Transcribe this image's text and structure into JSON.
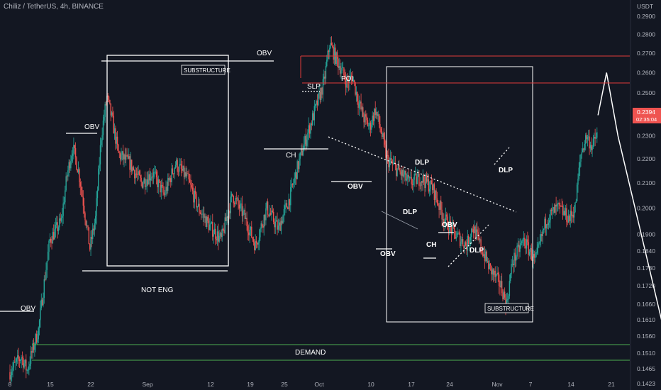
{
  "header": {
    "title": "Chiliz / TetherUS, 4h, BINANCE"
  },
  "colors": {
    "background": "#131722",
    "up": "#26a69a",
    "down": "#ef5350",
    "annotation": "#ffffff",
    "poi": "#e03b3b",
    "demand": "#4caf50"
  },
  "chart_data": {
    "type": "candlestick",
    "title": "Chiliz / TetherUS, 4h, BINANCE",
    "price_axis_label": "USDT",
    "y_ticks": [
      "0.2900",
      "0.2800",
      "0.2700",
      "0.2600",
      "0.2500",
      "0.2400",
      "0.2300",
      "0.2200",
      "0.2100",
      "0.2000",
      "0.1900",
      "0.1840",
      "0.1780",
      "0.1720",
      "0.1660",
      "0.1610",
      "0.1560",
      "0.1510",
      "0.1465",
      "0.1423"
    ],
    "x_ticks": [
      "8",
      "15",
      "22",
      "Sep",
      "12",
      "19",
      "25",
      "Oct",
      "10",
      "17",
      "24",
      "Nov",
      "7",
      "14",
      "21"
    ],
    "last_price": "0.2394",
    "countdown": "02:35:04",
    "scale": "log",
    "trend_path": [
      [
        8,
        0.1455
      ],
      [
        10,
        0.15
      ],
      [
        11,
        0.146
      ],
      [
        13,
        0.158
      ],
      [
        15,
        0.188
      ],
      [
        17,
        0.195
      ],
      [
        18,
        0.213
      ],
      [
        19,
        0.225
      ],
      [
        20,
        0.215
      ],
      [
        21,
        0.2
      ],
      [
        22,
        0.185
      ],
      [
        23,
        0.196
      ],
      [
        24,
        0.23
      ],
      [
        25,
        0.248
      ],
      [
        26,
        0.236
      ],
      [
        27,
        0.222
      ],
      [
        29,
        0.218
      ],
      [
        31,
        0.21
      ],
      [
        33,
        0.214
      ],
      [
        35,
        0.205
      ],
      [
        37,
        0.218
      ],
      [
        39,
        0.212
      ],
      [
        41,
        0.2
      ],
      [
        43,
        0.193
      ],
      [
        45,
        0.188
      ],
      [
        47,
        0.205
      ],
      [
        49,
        0.197
      ],
      [
        51,
        0.186
      ],
      [
        53,
        0.2
      ],
      [
        55,
        0.192
      ],
      [
        57,
        0.204
      ],
      [
        59,
        0.222
      ],
      [
        61,
        0.238
      ],
      [
        63,
        0.255
      ],
      [
        64,
        0.275
      ],
      [
        65,
        0.268
      ],
      [
        66,
        0.262
      ],
      [
        67,
        0.255
      ],
      [
        68,
        0.258
      ],
      [
        69,
        0.246
      ],
      [
        70,
        0.238
      ],
      [
        71,
        0.234
      ],
      [
        72,
        0.242
      ],
      [
        73,
        0.232
      ],
      [
        74,
        0.22
      ],
      [
        76,
        0.215
      ],
      [
        78,
        0.21
      ],
      [
        80,
        0.212
      ],
      [
        82,
        0.208
      ],
      [
        84,
        0.196
      ],
      [
        86,
        0.19
      ],
      [
        88,
        0.186
      ],
      [
        89,
        0.193
      ],
      [
        90,
        0.188
      ],
      [
        92,
        0.178
      ],
      [
        94,
        0.172
      ],
      [
        95,
        0.166
      ],
      [
        96,
        0.18
      ],
      [
        98,
        0.188
      ],
      [
        99,
        0.184
      ],
      [
        100,
        0.18
      ],
      [
        102,
        0.196
      ],
      [
        104,
        0.2
      ],
      [
        106,
        0.196
      ],
      [
        107,
        0.2
      ],
      [
        108,
        0.222
      ],
      [
        109,
        0.23
      ],
      [
        110,
        0.225
      ],
      [
        111,
        0.232
      ]
    ],
    "projection": [
      [
        111,
        0.2394
      ],
      [
        112.5,
        0.26
      ],
      [
        114.5,
        0.23
      ],
      [
        124,
        0.1475
      ]
    ]
  },
  "annotations": {
    "obv1": "OBV",
    "obv2": "OBV",
    "obv3": "OBV",
    "obv4": "OBV",
    "obv5": "OBV",
    "obv6": "OBV",
    "substructure1": "SUBSTRUCTURE",
    "substructure2": "SUBSTRUCTURE",
    "ch1": "CH",
    "ch2": "CH",
    "slp": "SLP",
    "poi": "POI",
    "dlp1": "DLP",
    "dlp2": "DLP",
    "dlp3": "DLP",
    "dlp4": "DLP",
    "not_eng": "NOT ENG",
    "demand": "DEMAND"
  }
}
